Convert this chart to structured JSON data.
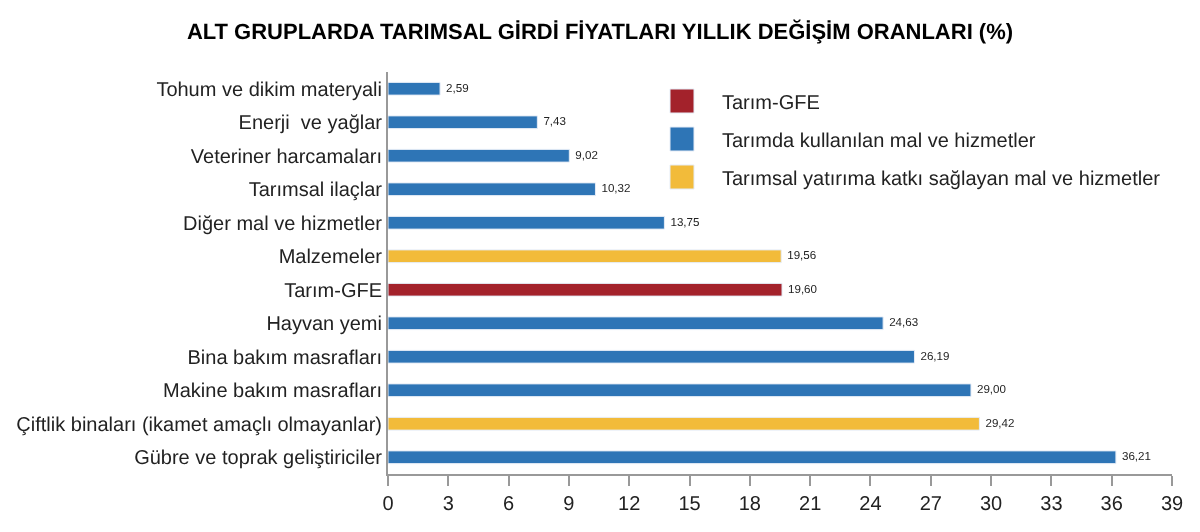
{
  "chart_data": {
    "type": "bar",
    "orientation": "horizontal",
    "title": "ALT GRUPLARDA TARIMSAL GİRDİ FİYATLARI YILLIK DEĞİŞİM ORANLARI (%)",
    "categories": [
      "Tohum ve dikim materyali",
      "Enerji  ve yağlar",
      "Veteriner harcamaları",
      "Tarımsal ilaçlar",
      "Diğer mal ve hizmetler",
      "Malzemeler",
      "Tarım-GFE",
      "Hayvan yemi",
      "Bina bakım masrafları",
      "Makine bakım masrafları",
      "Çiftlik binaları (ikamet amaçlı olmayanlar)",
      "Gübre ve toprak geliştiriciler"
    ],
    "series": [
      {
        "name": "Tarım-GFE",
        "color": "#a3222b",
        "values": [
          null,
          null,
          null,
          null,
          null,
          null,
          19.6,
          null,
          null,
          null,
          null,
          null
        ],
        "value_labels": [
          null,
          null,
          null,
          null,
          null,
          null,
          "19,60",
          null,
          null,
          null,
          null,
          null
        ]
      },
      {
        "name": "Tarımda kullanılan mal ve hizmetler",
        "color": "#2e75b6",
        "values": [
          2.59,
          7.43,
          9.02,
          10.32,
          13.75,
          null,
          null,
          24.63,
          26.19,
          29.0,
          null,
          36.21
        ],
        "value_labels": [
          "2,59",
          "7,43",
          "9,02",
          "10,32",
          "13,75",
          null,
          null,
          "24,63",
          "26,19",
          "29,00",
          null,
          "36,21"
        ]
      },
      {
        "name": "Tarımsal yatırıma katkı sağlayan mal ve hizmetler",
        "color": "#f2bb3a",
        "values": [
          null,
          null,
          null,
          null,
          null,
          19.56,
          null,
          null,
          null,
          null,
          29.42,
          null
        ],
        "value_labels": [
          null,
          null,
          null,
          null,
          null,
          "19,56",
          null,
          null,
          null,
          null,
          "29,42",
          null
        ]
      }
    ],
    "xlim": [
      0,
      39
    ],
    "xticks": [
      0,
      3,
      6,
      9,
      12,
      15,
      18,
      21,
      24,
      27,
      30,
      33,
      36,
      39
    ],
    "legend": "top right"
  }
}
